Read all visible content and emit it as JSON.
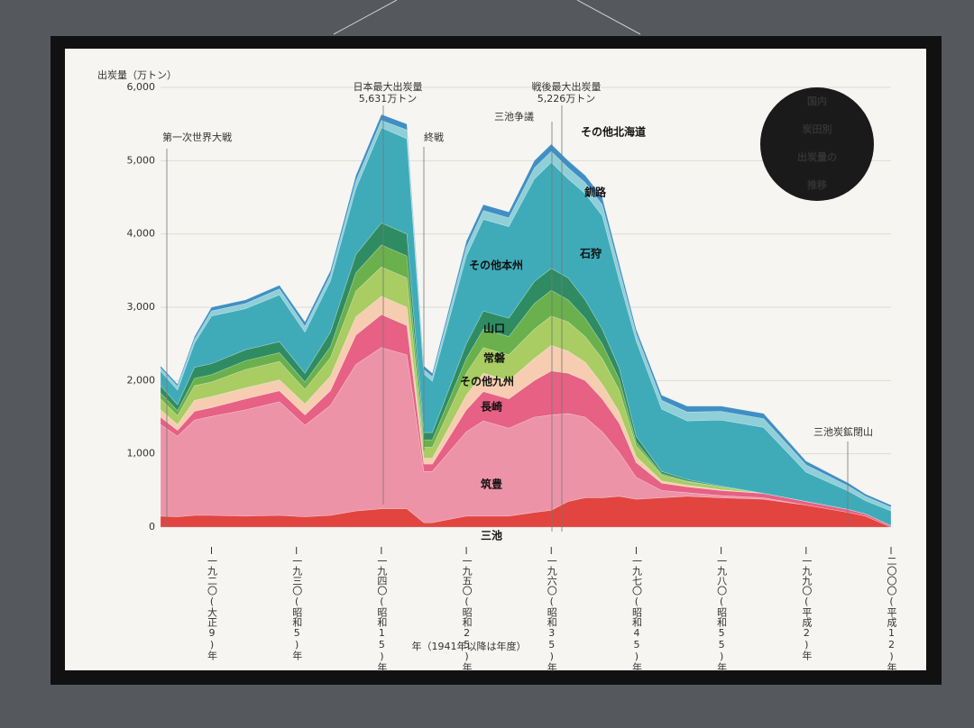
{
  "chart_data": {
    "type": "stacked-area",
    "title": [
      "国内",
      "炭田別",
      "出炭量の",
      "推移"
    ],
    "y_label": "出炭量（万トン）",
    "x_label": "年（1941年以降は年度）",
    "annotations": [
      "第一次世界大戦",
      "日本最大出炭量",
      "5,631万トン",
      "終戦",
      "三池争議",
      "戦後最大出炭量",
      "5,226万トン",
      "三池炭鉱閉山"
    ],
    "x": [
      1914,
      1916,
      1918,
      1920,
      1924,
      1928,
      1931,
      1934,
      1937,
      1940,
      1943,
      1945,
      1946,
      1950,
      1952,
      1955,
      1958,
      1960,
      1962,
      1964,
      1966,
      1968,
      1970,
      1973,
      1976,
      1980,
      1985,
      1990,
      1995,
      1997,
      2000
    ],
    "xlim": [
      1914,
      2000
    ],
    "xticks": [
      {
        "value": 1920,
        "label": "一九二〇(大正9)年"
      },
      {
        "value": 1930,
        "label": "一九三〇(昭和5)年"
      },
      {
        "value": 1940,
        "label": "一九四〇(昭和15)年"
      },
      {
        "value": 1950,
        "label": "一九五〇(昭和25)年"
      },
      {
        "value": 1960,
        "label": "一九六〇(昭和35)年"
      },
      {
        "value": 1970,
        "label": "一九七〇(昭和45)年"
      },
      {
        "value": 1980,
        "label": "一九八〇(昭和55)年"
      },
      {
        "value": 1990,
        "label": "一九九〇(平成2)年"
      },
      {
        "value": 2000,
        "label": "二〇〇〇(平成12)年"
      }
    ],
    "ylim": [
      0,
      6000
    ],
    "yticks": [
      0,
      {
        "value": 1000,
        "label": "1,000"
      },
      {
        "value": 2000,
        "label": "2,000"
      },
      {
        "value": 3000,
        "label": "3,000"
      },
      {
        "value": 4000,
        "label": "4,000"
      },
      {
        "value": 5000,
        "label": "5,000"
      },
      {
        "value": 6000,
        "label": "6,000"
      }
    ],
    "grid": true,
    "series": [
      {
        "name": "三池",
        "color": "#e2443f",
        "values": [
          150,
          140,
          160,
          160,
          150,
          160,
          140,
          160,
          220,
          250,
          250,
          60,
          60,
          150,
          150,
          150,
          200,
          230,
          350,
          400,
          400,
          420,
          380,
          400,
          420,
          400,
          380,
          300,
          200,
          150,
          0
        ]
      },
      {
        "name": "筑豊",
        "color": "#ec93a8",
        "values": [
          1250,
          1100,
          1300,
          1350,
          1450,
          1550,
          1250,
          1500,
          2000,
          2200,
          2100,
          700,
          700,
          1150,
          1300,
          1200,
          1300,
          1300,
          1200,
          1100,
          900,
          600,
          300,
          100,
          50,
          30,
          20,
          0,
          0,
          0,
          0
        ]
      },
      {
        "name": "長崎",
        "color": "#e66184",
        "values": [
          100,
          80,
          120,
          120,
          150,
          150,
          140,
          200,
          400,
          450,
          400,
          100,
          100,
          300,
          400,
          400,
          500,
          600,
          550,
          500,
          450,
          400,
          200,
          100,
          80,
          70,
          60,
          50,
          40,
          30,
          20
        ]
      },
      {
        "name": "その他九州",
        "color": "#f6cdb0",
        "values": [
          100,
          80,
          150,
          150,
          150,
          150,
          150,
          200,
          250,
          250,
          250,
          80,
          80,
          200,
          250,
          250,
          300,
          350,
          300,
          250,
          200,
          150,
          80,
          30,
          20,
          10,
          0,
          0,
          0,
          0,
          0
        ]
      },
      {
        "name": "常磐",
        "color": "#a9cc63",
        "values": [
          150,
          120,
          200,
          200,
          250,
          250,
          200,
          250,
          350,
          400,
          400,
          150,
          150,
          300,
          350,
          350,
          400,
          400,
          400,
          350,
          350,
          300,
          150,
          80,
          50,
          40,
          0,
          0,
          0,
          0,
          0
        ]
      },
      {
        "name": "山口",
        "color": "#6ab04c",
        "values": [
          80,
          70,
          100,
          100,
          120,
          120,
          100,
          150,
          250,
          300,
          300,
          100,
          100,
          200,
          250,
          250,
          350,
          350,
          300,
          250,
          200,
          150,
          50,
          20,
          10,
          0,
          0,
          0,
          0,
          0,
          0
        ]
      },
      {
        "name": "その他本州",
        "color": "#2f8c62",
        "values": [
          100,
          80,
          150,
          150,
          150,
          150,
          120,
          200,
          250,
          300,
          300,
          100,
          100,
          200,
          250,
          250,
          300,
          300,
          300,
          250,
          200,
          150,
          80,
          30,
          20,
          10,
          0,
          0,
          0,
          0,
          0
        ]
      },
      {
        "name": "石狩",
        "color": "#3fabb9",
        "values": [
          200,
          200,
          330,
          650,
          560,
          640,
          560,
          700,
          900,
          1300,
          1300,
          800,
          700,
          1200,
          1250,
          1250,
          1400,
          1446,
          1350,
          1450,
          1550,
          1200,
          1300,
          850,
          800,
          900,
          900,
          400,
          250,
          180,
          200
        ]
      },
      {
        "name": "釧路",
        "color": "#8fcfd8",
        "values": [
          40,
          50,
          50,
          70,
          70,
          80,
          80,
          80,
          100,
          100,
          120,
          60,
          60,
          120,
          120,
          120,
          150,
          150,
          150,
          150,
          150,
          150,
          100,
          120,
          120,
          120,
          120,
          100,
          70,
          60,
          50
        ]
      },
      {
        "name": "その他北海道",
        "color": "#3f8fc4",
        "values": [
          30,
          30,
          40,
          50,
          50,
          50,
          60,
          60,
          80,
          81,
          80,
          50,
          50,
          80,
          80,
          80,
          100,
          100,
          100,
          100,
          100,
          80,
          60,
          70,
          80,
          70,
          70,
          50,
          40,
          30,
          30
        ]
      }
    ]
  }
}
